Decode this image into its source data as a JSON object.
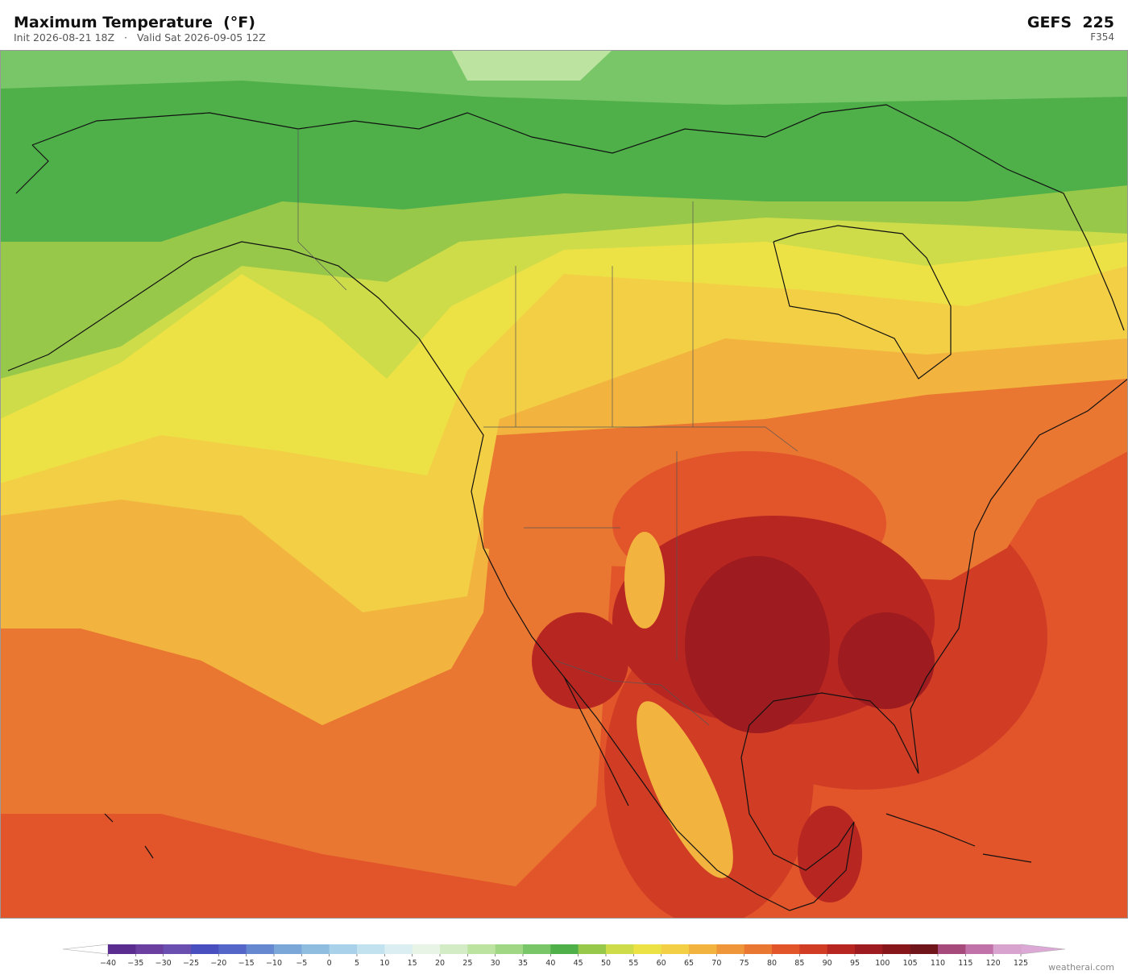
{
  "header": {
    "title": "Maximum Temperature  (°F)",
    "init": "Init 2026-08-21 18Z",
    "separator": "·",
    "valid": "Valid Sat 2026-09-05 12Z",
    "model": "GEFS  225",
    "forecast_hour": "F354"
  },
  "colorbar": {
    "ticks": [
      {
        "value": -40,
        "label": "−40"
      },
      {
        "value": -35,
        "label": "−35"
      },
      {
        "value": -30,
        "label": "−30"
      },
      {
        "value": -25,
        "label": "−25"
      },
      {
        "value": -20,
        "label": "−20"
      },
      {
        "value": -15,
        "label": "−15"
      },
      {
        "value": -10,
        "label": "−10"
      },
      {
        "value": -5,
        "label": "−5"
      },
      0,
      5,
      10,
      15,
      20,
      25,
      30,
      35,
      40,
      45,
      50,
      55,
      60,
      65,
      70,
      75,
      80,
      85,
      90,
      95,
      100,
      105,
      110,
      115,
      120,
      125
    ],
    "colors": [
      "#5b2d91",
      "#6a3fa0",
      "#6b4fb0",
      "#4a4fbf",
      "#5466c8",
      "#6688d0",
      "#7aa6d8",
      "#8fbde0",
      "#a9d2ea",
      "#c3e2ef",
      "#dbeff2",
      "#e8f4e6",
      "#d4ecc5",
      "#bde3a0",
      "#9fd785",
      "#78c667",
      "#4fb04a",
      "#98c84a",
      "#cddc48",
      "#ede245",
      "#f3cf45",
      "#f2b43f",
      "#ef963a",
      "#ea7731",
      "#e2542a",
      "#d13c25",
      "#b82622",
      "#9e1b1f",
      "#861619",
      "#701519",
      "#a54a7a",
      "#c172a8",
      "#d9a3cf"
    ],
    "under_color": "#ffffff",
    "over_color": "#dca8d6"
  },
  "credit": "weatherai.com"
}
